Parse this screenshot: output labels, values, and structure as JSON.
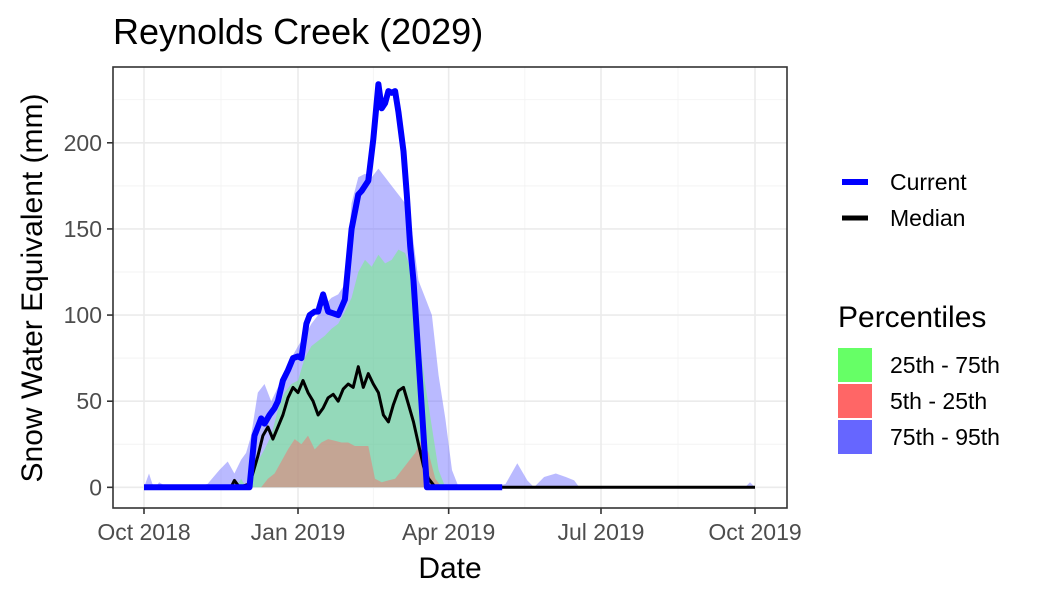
{
  "chart_data": {
    "type": "area",
    "title": "Reynolds Creek (2029)",
    "xlabel": "Date",
    "ylabel": "Snow Water Equivalent (mm)",
    "xlim": [
      "2018-10-01",
      "2019-10-01"
    ],
    "ylim": [
      -12,
      244
    ],
    "x_ticks": [
      {
        "date": "2018-10-01",
        "label": "Oct 2018"
      },
      {
        "date": "2019-01-01",
        "label": "Jan 2019"
      },
      {
        "date": "2019-04-01",
        "label": "Apr 2019"
      },
      {
        "date": "2019-07-01",
        "label": "Jul 2019"
      },
      {
        "date": "2019-10-01",
        "label": "Oct 2019"
      }
    ],
    "y_ticks": [
      0,
      50,
      100,
      150,
      200
    ],
    "grid": true,
    "legend_position": "right",
    "colors": {
      "current": "#0000ff",
      "median": "#000000",
      "p25_75": "#66ff66",
      "p5_25": "#ff6666",
      "p75_95": "#6666ff"
    },
    "legend": {
      "lines": [
        {
          "key": "current",
          "label": "Current"
        },
        {
          "key": "median",
          "label": "Median"
        }
      ],
      "percentiles_title": "Percentiles",
      "percentiles": [
        {
          "key": "p25_75",
          "label": "25th - 75th"
        },
        {
          "key": "p5_25",
          "label": "5th - 25th"
        },
        {
          "key": "p75_95",
          "label": "75th - 95th"
        }
      ]
    },
    "series": {
      "current": {
        "name": "Current",
        "x": [
          "2018-10-01",
          "2018-12-03",
          "2018-12-06",
          "2018-12-10",
          "2018-12-12",
          "2018-12-15",
          "2018-12-18",
          "2018-12-20",
          "2018-12-23",
          "2018-12-26",
          "2018-12-29",
          "2019-01-01",
          "2019-01-03",
          "2019-01-06",
          "2019-01-08",
          "2019-01-11",
          "2019-01-13",
          "2019-01-16",
          "2019-01-19",
          "2019-01-22",
          "2019-01-25",
          "2019-01-29",
          "2019-02-02",
          "2019-02-06",
          "2019-02-08",
          "2019-02-12",
          "2019-02-15",
          "2019-02-18",
          "2019-02-20",
          "2019-02-22",
          "2019-02-24",
          "2019-02-26",
          "2019-02-28",
          "2019-03-02",
          "2019-03-05",
          "2019-03-07",
          "2019-03-09",
          "2019-03-11",
          "2019-03-14",
          "2019-03-16",
          "2019-03-19",
          "2019-03-23",
          "2019-03-25",
          "2019-03-27",
          "2019-03-29",
          "2019-03-31",
          "2019-04-02",
          "2019-04-04",
          "2019-04-06",
          "2019-04-08",
          "2019-04-10",
          "2019-04-12",
          "2019-04-14",
          "2019-05-01",
          "2019-05-03"
        ],
        "y": [
          0,
          0,
          30,
          40,
          37,
          42,
          46,
          50,
          62,
          68,
          75,
          76,
          75,
          95,
          100,
          102,
          102,
          112,
          102,
          101,
          100,
          109,
          150,
          170,
          172,
          178,
          202,
          234,
          220,
          223,
          230,
          229,
          230,
          218,
          195,
          170,
          140,
          120,
          75,
          45,
          0,
          0,
          0,
          0,
          0,
          0,
          0,
          0,
          0,
          0,
          0,
          0,
          0,
          0,
          0
        ]
      },
      "median": {
        "name": "Median",
        "x": [
          "2018-10-01",
          "2018-11-22",
          "2018-11-24",
          "2018-11-27",
          "2018-12-03",
          "2018-12-05",
          "2018-12-08",
          "2018-12-11",
          "2018-12-14",
          "2018-12-17",
          "2018-12-20",
          "2018-12-23",
          "2018-12-26",
          "2018-12-29",
          "2019-01-01",
          "2019-01-04",
          "2019-01-07",
          "2019-01-10",
          "2019-01-13",
          "2019-01-16",
          "2019-01-19",
          "2019-01-22",
          "2019-01-25",
          "2019-01-28",
          "2019-01-31",
          "2019-02-03",
          "2019-02-06",
          "2019-02-09",
          "2019-02-12",
          "2019-02-15",
          "2019-02-18",
          "2019-02-21",
          "2019-02-24",
          "2019-02-27",
          "2019-03-02",
          "2019-03-05",
          "2019-03-08",
          "2019-03-11",
          "2019-03-14",
          "2019-03-17",
          "2019-03-20",
          "2019-03-24",
          "2019-03-28",
          "2019-03-31",
          "2019-04-03",
          "2019-04-07",
          "2019-04-12",
          "2019-10-01"
        ],
        "y": [
          0,
          0,
          4,
          0,
          2,
          8,
          18,
          30,
          35,
          28,
          35,
          42,
          52,
          58,
          55,
          62,
          55,
          50,
          42,
          46,
          52,
          54,
          50,
          57,
          60,
          58,
          70,
          58,
          66,
          60,
          55,
          42,
          38,
          48,
          56,
          58,
          48,
          38,
          25,
          12,
          5,
          0,
          0,
          0,
          0,
          0,
          0,
          0
        ]
      },
      "p75_95": {
        "name": "75th - 95th",
        "x": [
          "2018-10-01",
          "2018-10-04",
          "2018-10-06",
          "2018-10-08",
          "2018-10-10",
          "2018-10-15",
          "2018-11-01",
          "2018-11-08",
          "2018-11-15",
          "2018-11-20",
          "2018-11-24",
          "2018-11-28",
          "2018-12-01",
          "2018-12-04",
          "2018-12-08",
          "2018-12-12",
          "2018-12-16",
          "2018-12-20",
          "2018-12-24",
          "2018-12-28",
          "2019-01-01",
          "2019-01-05",
          "2019-01-09",
          "2019-01-13",
          "2019-01-17",
          "2019-01-21",
          "2019-01-25",
          "2019-01-29",
          "2019-02-02",
          "2019-02-06",
          "2019-02-10",
          "2019-02-14",
          "2019-02-18",
          "2019-02-22",
          "2019-02-26",
          "2019-03-02",
          "2019-03-06",
          "2019-03-10",
          "2019-03-14",
          "2019-03-18",
          "2019-03-22",
          "2019-03-26",
          "2019-03-30",
          "2019-04-03",
          "2019-04-07",
          "2019-04-11",
          "2019-04-15",
          "2019-04-20",
          "2019-04-28",
          "2019-05-05",
          "2019-05-12",
          "2019-05-18",
          "2019-05-22",
          "2019-05-28",
          "2019-06-04",
          "2019-06-10",
          "2019-06-15",
          "2019-06-18",
          "2019-09-25",
          "2019-09-28",
          "2019-10-01"
        ],
        "y": [
          0,
          8,
          2,
          0,
          3,
          0,
          0,
          2,
          10,
          15,
          8,
          16,
          20,
          30,
          55,
          60,
          50,
          58,
          62,
          75,
          82,
          88,
          95,
          100,
          106,
          110,
          112,
          118,
          165,
          180,
          182,
          180,
          185,
          180,
          175,
          170,
          165,
          150,
          120,
          110,
          100,
          65,
          40,
          10,
          0,
          0,
          0,
          0,
          0,
          2,
          14,
          4,
          0,
          6,
          8,
          6,
          4,
          0,
          0,
          3,
          0
        ]
      },
      "p25_75": {
        "name": "25th - 75th",
        "x": [
          "2018-10-01",
          "2018-11-25",
          "2018-11-28",
          "2018-12-01",
          "2018-12-04",
          "2018-12-08",
          "2018-12-12",
          "2018-12-16",
          "2018-12-20",
          "2018-12-24",
          "2018-12-28",
          "2019-01-01",
          "2019-01-05",
          "2019-01-09",
          "2019-01-13",
          "2019-01-17",
          "2019-01-21",
          "2019-01-25",
          "2019-01-29",
          "2019-02-02",
          "2019-02-06",
          "2019-02-10",
          "2019-02-14",
          "2019-02-18",
          "2019-02-22",
          "2019-02-26",
          "2019-03-02",
          "2019-03-06",
          "2019-03-10",
          "2019-03-14",
          "2019-03-18",
          "2019-03-22",
          "2019-03-26",
          "2019-03-30",
          "2019-04-03",
          "2019-04-07",
          "2019-10-01"
        ],
        "y": [
          0,
          0,
          5,
          0,
          8,
          15,
          22,
          30,
          45,
          55,
          60,
          62,
          75,
          82,
          85,
          88,
          92,
          95,
          102,
          110,
          125,
          132,
          128,
          135,
          130,
          132,
          138,
          136,
          125,
          90,
          60,
          35,
          10,
          0,
          0,
          0,
          0
        ]
      },
      "p5_25": {
        "name": "5th - 25th",
        "x": [
          "2018-10-01",
          "2018-12-10",
          "2018-12-14",
          "2018-12-18",
          "2018-12-22",
          "2018-12-26",
          "2018-12-30",
          "2019-01-03",
          "2019-01-07",
          "2019-01-11",
          "2019-01-15",
          "2019-01-19",
          "2019-01-23",
          "2019-01-27",
          "2019-01-31",
          "2019-02-04",
          "2019-02-08",
          "2019-02-12",
          "2019-02-16",
          "2019-02-20",
          "2019-02-24",
          "2019-02-28",
          "2019-03-04",
          "2019-03-08",
          "2019-03-12",
          "2019-03-16",
          "2019-03-20",
          "2019-03-24",
          "2019-03-28",
          "2019-04-01",
          "2019-10-01"
        ],
        "y": [
          0,
          0,
          5,
          8,
          15,
          22,
          28,
          25,
          30,
          22,
          26,
          28,
          27,
          26,
          26,
          24,
          24,
          24,
          5,
          3,
          4,
          5,
          10,
          15,
          20,
          28,
          20,
          5,
          0,
          0,
          0
        ]
      }
    }
  }
}
